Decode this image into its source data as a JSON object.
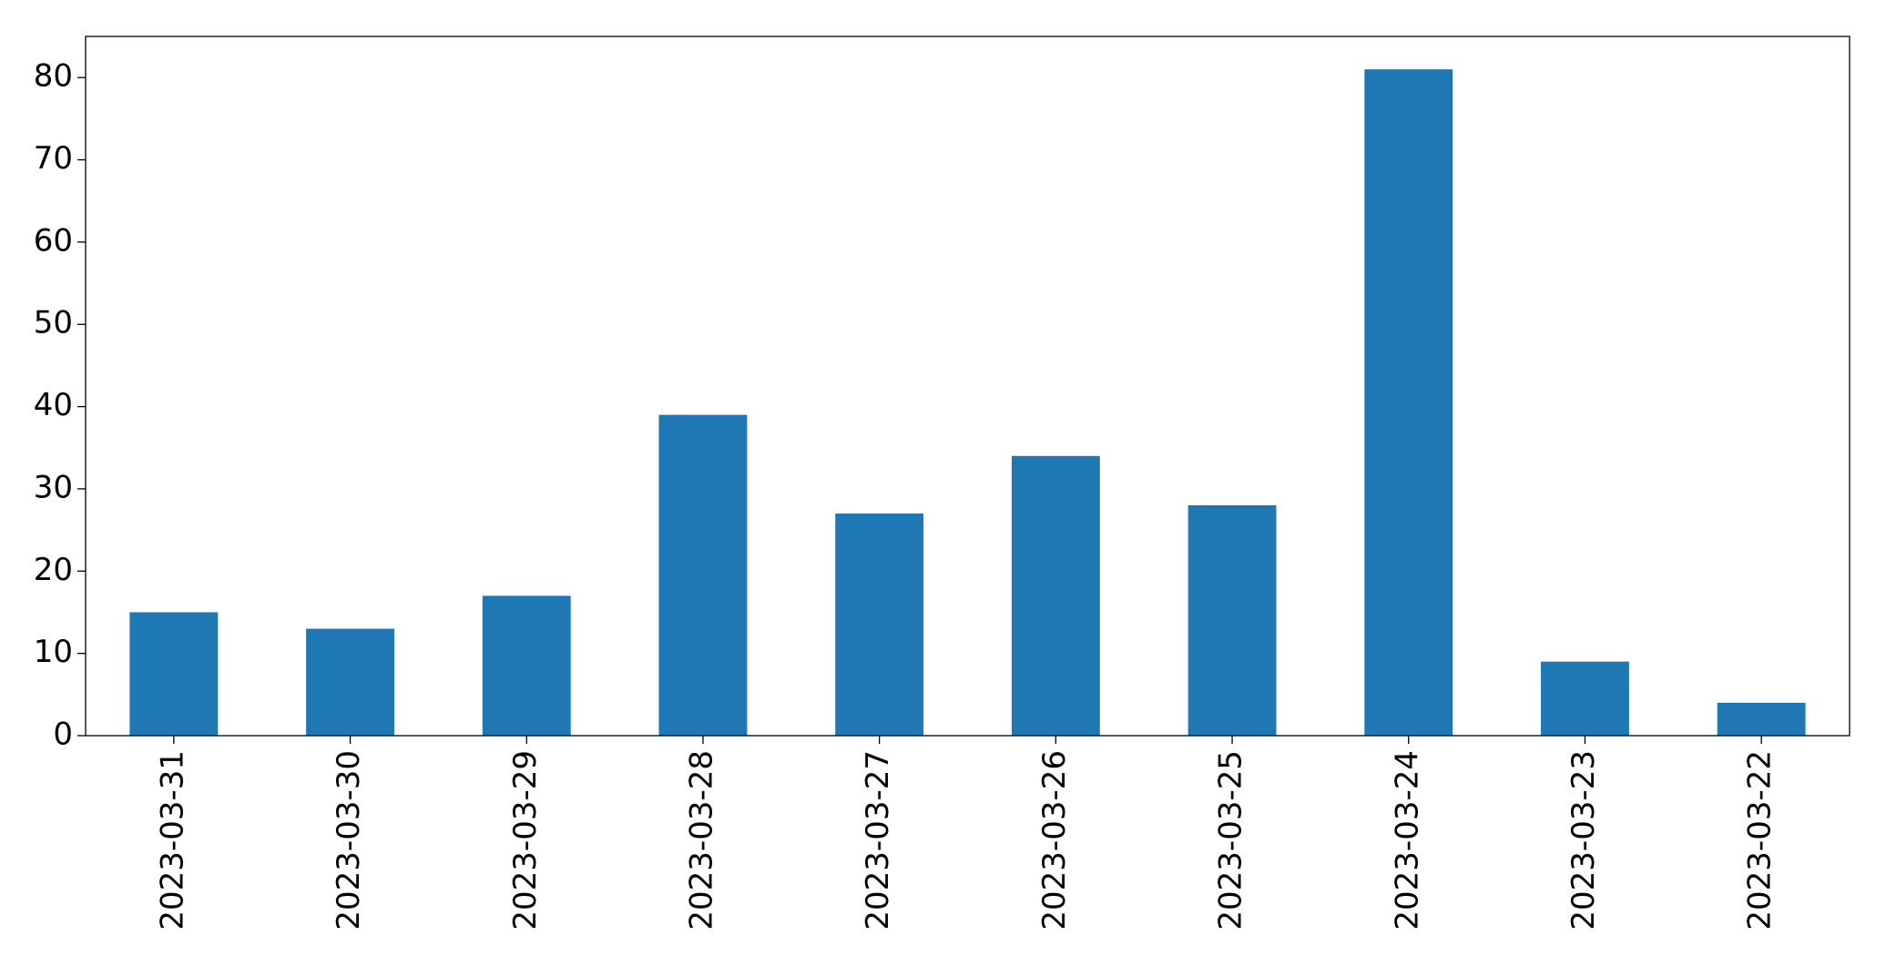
{
  "chart_data": {
    "type": "bar",
    "categories": [
      "2023-03-31",
      "2023-03-30",
      "2023-03-29",
      "2023-03-28",
      "2023-03-27",
      "2023-03-26",
      "2023-03-25",
      "2023-03-24",
      "2023-03-23",
      "2023-03-22"
    ],
    "values": [
      15,
      13,
      17,
      39,
      27,
      34,
      28,
      81,
      9,
      4
    ],
    "color": "#1f77b4",
    "ylim": [
      0,
      85
    ],
    "yticks": [
      0,
      10,
      20,
      30,
      40,
      50,
      60,
      70,
      80
    ],
    "grid": false
  }
}
